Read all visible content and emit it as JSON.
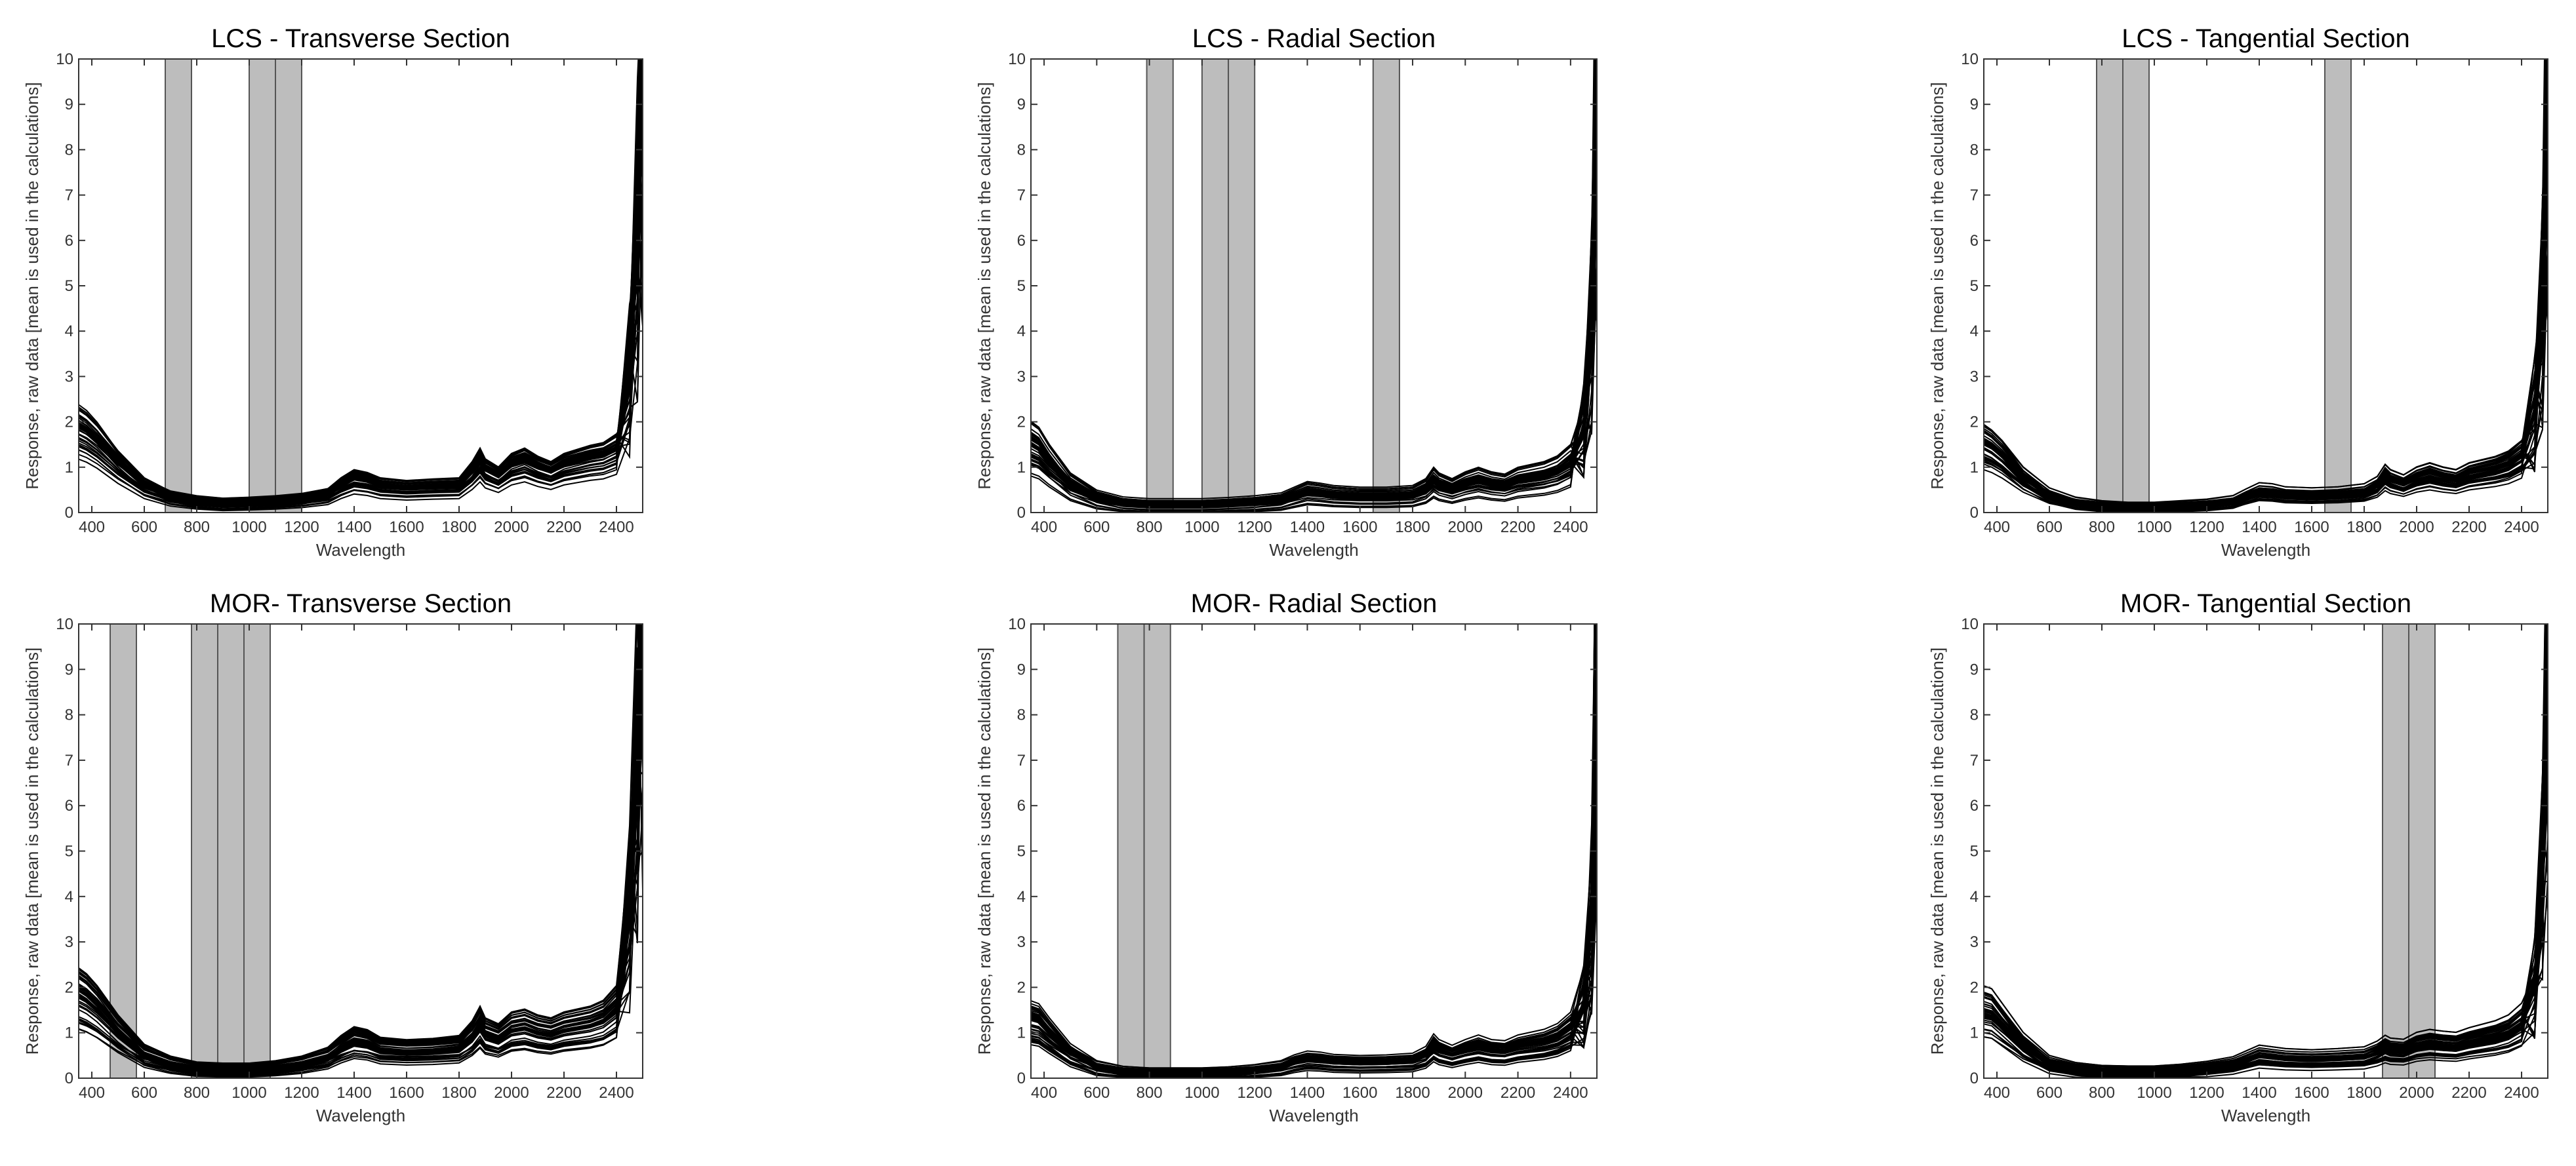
{
  "figure": {
    "panels": [
      {
        "title": "LCS - Transverse Section"
      },
      {
        "title": "LCS - Radial Section"
      },
      {
        "title": "LCS - Tangential Section"
      },
      {
        "title": "MOR- Transverse Section"
      },
      {
        "title": "MOR- Radial Section"
      },
      {
        "title": "MOR- Tangential Section"
      }
    ]
  },
  "chart_data": [
    {
      "type": "line",
      "title": "LCS - Transverse Section",
      "xlabel": "Wavelength",
      "ylabel": "Response, raw data [mean is used in the calculations]",
      "xlim": [
        350,
        2500
      ],
      "ylim": [
        0,
        10
      ],
      "xticks": [
        400,
        600,
        800,
        1000,
        1200,
        1400,
        1600,
        1800,
        2000,
        2200,
        2400
      ],
      "yticks": [
        0,
        1,
        2,
        3,
        4,
        5,
        6,
        7,
        8,
        9,
        10
      ],
      "grid": false,
      "highlight_bands": [
        [
          680,
          780
        ],
        [
          1000,
          1100
        ],
        [
          1100,
          1200
        ]
      ],
      "series": [
        {
          "x": [
            350,
            380,
            420,
            500,
            600,
            700,
            800,
            900,
            1000,
            1100,
            1200,
            1300,
            1350,
            1400,
            1450,
            1500,
            1600,
            1700,
            1800,
            1850,
            1880,
            1900,
            1950,
            2000,
            2050,
            2100,
            2150,
            2200,
            2300,
            2350,
            2400,
            2450,
            2480,
            2500
          ],
          "y": [
            1.9,
            1.8,
            1.6,
            1.1,
            0.6,
            0.35,
            0.25,
            0.2,
            0.22,
            0.25,
            0.3,
            0.4,
            0.6,
            0.75,
            0.7,
            0.6,
            0.55,
            0.58,
            0.6,
            0.9,
            1.15,
            0.95,
            0.8,
            1.05,
            1.15,
            1.0,
            0.9,
            1.05,
            1.2,
            1.25,
            1.4,
            3.0,
            6.0,
            10.0
          ]
        }
      ]
    },
    {
      "type": "line",
      "title": "LCS - Radial Section",
      "xlabel": "Wavelength",
      "ylabel": "Response, raw data [mean is used in the calculations]",
      "xlim": [
        350,
        2500
      ],
      "ylim": [
        0,
        10
      ],
      "xticks": [
        400,
        600,
        800,
        1000,
        1200,
        1400,
        1600,
        1800,
        2000,
        2200,
        2400
      ],
      "yticks": [
        0,
        1,
        2,
        3,
        4,
        5,
        6,
        7,
        8,
        9,
        10
      ],
      "grid": false,
      "highlight_bands": [
        [
          790,
          890
        ],
        [
          1000,
          1100
        ],
        [
          1100,
          1200
        ],
        [
          1650,
          1750
        ]
      ],
      "series": [
        {
          "x": [
            350,
            380,
            420,
            500,
            600,
            700,
            800,
            900,
            1000,
            1100,
            1200,
            1300,
            1350,
            1400,
            1450,
            1500,
            1600,
            1700,
            1800,
            1850,
            1880,
            1900,
            1950,
            2000,
            2050,
            2100,
            2150,
            2200,
            2300,
            2350,
            2400,
            2450,
            2480,
            2500
          ],
          "y": [
            1.5,
            1.4,
            1.1,
            0.6,
            0.3,
            0.18,
            0.15,
            0.15,
            0.15,
            0.17,
            0.2,
            0.25,
            0.35,
            0.45,
            0.42,
            0.38,
            0.35,
            0.35,
            0.38,
            0.5,
            0.7,
            0.6,
            0.5,
            0.62,
            0.7,
            0.62,
            0.58,
            0.7,
            0.8,
            0.9,
            1.1,
            1.8,
            4.0,
            10.0
          ]
        }
      ]
    },
    {
      "type": "line",
      "title": "LCS - Tangential Section",
      "xlabel": "Wavelength",
      "ylabel": "Response, raw data [mean is used in the calculations]",
      "xlim": [
        350,
        2500
      ],
      "ylim": [
        0,
        10
      ],
      "xticks": [
        400,
        600,
        800,
        1000,
        1200,
        1400,
        1600,
        1800,
        2000,
        2200,
        2400
      ],
      "yticks": [
        0,
        1,
        2,
        3,
        4,
        5,
        6,
        7,
        8,
        9,
        10
      ],
      "grid": false,
      "highlight_bands": [
        [
          780,
          880
        ],
        [
          880,
          980
        ],
        [
          1650,
          1750
        ]
      ],
      "series": [
        {
          "x": [
            350,
            380,
            420,
            500,
            600,
            700,
            800,
            900,
            1000,
            1100,
            1200,
            1300,
            1350,
            1400,
            1450,
            1500,
            1600,
            1700,
            1800,
            1850,
            1880,
            1900,
            1950,
            2000,
            2050,
            2100,
            2150,
            2200,
            2300,
            2350,
            2400,
            2450,
            2480,
            2500
          ],
          "y": [
            1.6,
            1.5,
            1.3,
            0.8,
            0.4,
            0.22,
            0.15,
            0.12,
            0.12,
            0.15,
            0.18,
            0.25,
            0.38,
            0.5,
            0.48,
            0.42,
            0.4,
            0.42,
            0.48,
            0.62,
            0.85,
            0.75,
            0.65,
            0.8,
            0.88,
            0.8,
            0.75,
            0.88,
            1.0,
            1.1,
            1.3,
            2.2,
            4.5,
            10.0
          ]
        }
      ]
    },
    {
      "type": "line",
      "title": "MOR- Transverse Section",
      "xlabel": "Wavelength",
      "ylabel": "Response, raw data [mean is used in the calculations]",
      "xlim": [
        350,
        2500
      ],
      "ylim": [
        0,
        10
      ],
      "xticks": [
        400,
        600,
        800,
        1000,
        1200,
        1400,
        1600,
        1800,
        2000,
        2200,
        2400
      ],
      "yticks": [
        0,
        1,
        2,
        3,
        4,
        5,
        6,
        7,
        8,
        9,
        10
      ],
      "grid": false,
      "highlight_bands": [
        [
          470,
          570
        ],
        [
          780,
          880
        ],
        [
          880,
          980
        ],
        [
          980,
          1080
        ]
      ],
      "series": [
        {
          "x": [
            350,
            380,
            420,
            500,
            600,
            700,
            800,
            900,
            1000,
            1100,
            1200,
            1300,
            1350,
            1400,
            1450,
            1500,
            1600,
            1700,
            1800,
            1850,
            1880,
            1900,
            1950,
            2000,
            2050,
            2100,
            2150,
            2200,
            2300,
            2350,
            2400,
            2450,
            2480,
            2500
          ],
          "y": [
            1.8,
            1.7,
            1.5,
            1.0,
            0.5,
            0.3,
            0.2,
            0.18,
            0.18,
            0.22,
            0.3,
            0.45,
            0.65,
            0.8,
            0.75,
            0.62,
            0.58,
            0.6,
            0.65,
            0.9,
            1.15,
            0.95,
            0.85,
            1.05,
            1.1,
            1.0,
            0.95,
            1.05,
            1.15,
            1.25,
            1.5,
            3.5,
            7.0,
            10.0
          ]
        }
      ]
    },
    {
      "type": "line",
      "title": "MOR- Radial Section",
      "xlabel": "Wavelength",
      "ylabel": "Response, raw data [mean is used in the calculations]",
      "xlim": [
        350,
        2500
      ],
      "ylim": [
        0,
        10
      ],
      "xticks": [
        400,
        600,
        800,
        1000,
        1200,
        1400,
        1600,
        1800,
        2000,
        2200,
        2400
      ],
      "yticks": [
        0,
        1,
        2,
        3,
        4,
        5,
        6,
        7,
        8,
        9,
        10
      ],
      "grid": false,
      "highlight_bands": [
        [
          680,
          780
        ],
        [
          780,
          880
        ]
      ],
      "series": [
        {
          "x": [
            350,
            380,
            420,
            500,
            600,
            700,
            800,
            900,
            1000,
            1100,
            1200,
            1300,
            1350,
            1400,
            1450,
            1500,
            1600,
            1700,
            1800,
            1850,
            1880,
            1900,
            1950,
            2000,
            2050,
            2100,
            2150,
            2200,
            2300,
            2350,
            2400,
            2450,
            2480,
            2500
          ],
          "y": [
            1.3,
            1.25,
            1.0,
            0.55,
            0.25,
            0.15,
            0.12,
            0.12,
            0.12,
            0.14,
            0.18,
            0.25,
            0.35,
            0.42,
            0.4,
            0.36,
            0.34,
            0.35,
            0.38,
            0.5,
            0.72,
            0.62,
            0.52,
            0.62,
            0.7,
            0.62,
            0.6,
            0.7,
            0.8,
            0.9,
            1.1,
            1.6,
            3.5,
            10.0
          ]
        }
      ]
    },
    {
      "type": "line",
      "title": "MOR- Tangential Section",
      "xlabel": "Wavelength",
      "ylabel": "Response, raw data [mean is used in the calculations]",
      "xlim": [
        350,
        2500
      ],
      "ylim": [
        0,
        10
      ],
      "xticks": [
        400,
        600,
        800,
        1000,
        1200,
        1400,
        1600,
        1800,
        2000,
        2200,
        2400
      ],
      "yticks": [
        0,
        1,
        2,
        3,
        4,
        5,
        6,
        7,
        8,
        9,
        10
      ],
      "grid": false,
      "highlight_bands": [
        [
          1870,
          1970
        ],
        [
          1970,
          2070
        ]
      ],
      "series": [
        {
          "x": [
            350,
            380,
            420,
            500,
            600,
            700,
            800,
            900,
            1000,
            1100,
            1200,
            1300,
            1350,
            1400,
            1450,
            1500,
            1600,
            1700,
            1800,
            1850,
            1880,
            1900,
            1950,
            2000,
            2050,
            2100,
            2150,
            2200,
            2300,
            2350,
            2400,
            2450,
            2480,
            2500
          ],
          "y": [
            1.5,
            1.45,
            1.2,
            0.7,
            0.3,
            0.18,
            0.13,
            0.12,
            0.12,
            0.15,
            0.2,
            0.28,
            0.38,
            0.48,
            0.45,
            0.42,
            0.4,
            0.42,
            0.45,
            0.55,
            0.65,
            0.6,
            0.58,
            0.7,
            0.75,
            0.72,
            0.7,
            0.78,
            0.9,
            1.0,
            1.2,
            2.0,
            4.5,
            10.0
          ]
        }
      ]
    }
  ]
}
